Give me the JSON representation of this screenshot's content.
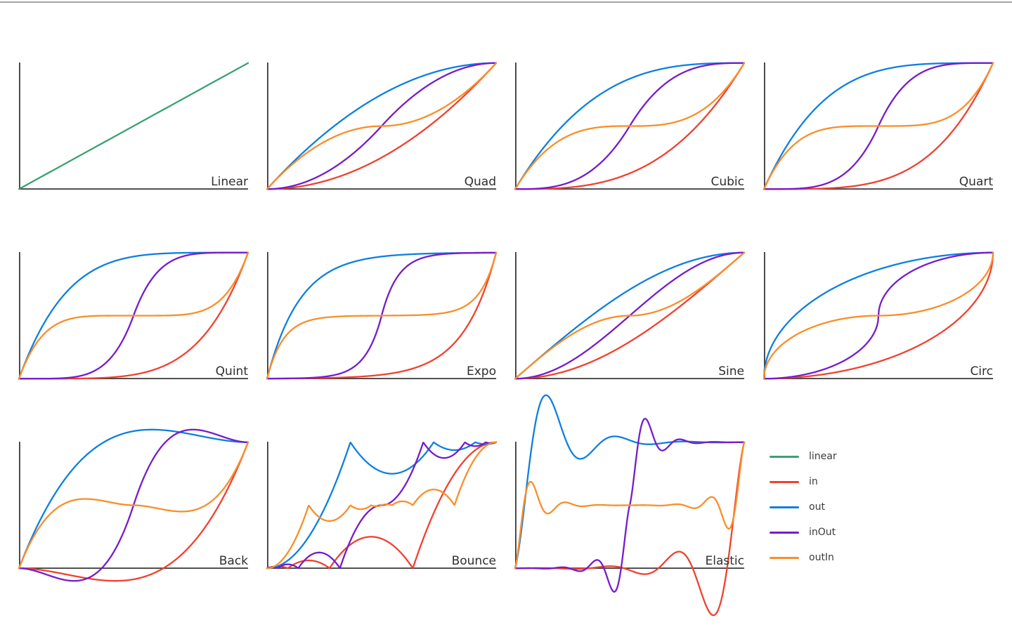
{
  "page": {
    "background": "#ffffff",
    "top_border_color": "#a5a5a5"
  },
  "style": {
    "axis_color": "#383838",
    "label_color": "#2f2f2f",
    "curve_stroke_width": 2.3,
    "series_colors": {
      "linear": "#3AA272",
      "in": "#F2402F",
      "out": "#0E7FE1",
      "inOut": "#761CCC",
      "outIn": "#F98E29"
    }
  },
  "legend": {
    "items": [
      {
        "label": "linear",
        "series": "linear"
      },
      {
        "label": "in",
        "series": "in"
      },
      {
        "label": "out",
        "series": "out"
      },
      {
        "label": "inOut",
        "series": "inOut"
      },
      {
        "label": "outIn",
        "series": "outIn"
      }
    ]
  },
  "chart_data": [
    {
      "type": "line",
      "title": "Linear",
      "easing_family": "linear",
      "x_range": [
        0,
        1
      ],
      "y_range": [
        0,
        1
      ],
      "curves": [
        {
          "series": "linear"
        }
      ]
    },
    {
      "type": "line",
      "title": "Quad",
      "easing_family": "quad",
      "x_range": [
        0,
        1
      ],
      "y_range": [
        0,
        1
      ],
      "curves": [
        {
          "series": "in"
        },
        {
          "series": "out"
        },
        {
          "series": "inOut"
        },
        {
          "series": "outIn"
        }
      ]
    },
    {
      "type": "line",
      "title": "Cubic",
      "easing_family": "cubic",
      "x_range": [
        0,
        1
      ],
      "y_range": [
        0,
        1
      ],
      "curves": [
        {
          "series": "in"
        },
        {
          "series": "out"
        },
        {
          "series": "inOut"
        },
        {
          "series": "outIn"
        }
      ]
    },
    {
      "type": "line",
      "title": "Quart",
      "easing_family": "quart",
      "x_range": [
        0,
        1
      ],
      "y_range": [
        0,
        1
      ],
      "curves": [
        {
          "series": "in"
        },
        {
          "series": "out"
        },
        {
          "series": "inOut"
        },
        {
          "series": "outIn"
        }
      ]
    },
    {
      "type": "line",
      "title": "Quint",
      "easing_family": "quint",
      "x_range": [
        0,
        1
      ],
      "y_range": [
        0,
        1
      ],
      "curves": [
        {
          "series": "in"
        },
        {
          "series": "out"
        },
        {
          "series": "inOut"
        },
        {
          "series": "outIn"
        }
      ]
    },
    {
      "type": "line",
      "title": "Expo",
      "easing_family": "expo",
      "x_range": [
        0,
        1
      ],
      "y_range": [
        0,
        1
      ],
      "curves": [
        {
          "series": "in"
        },
        {
          "series": "out"
        },
        {
          "series": "inOut"
        },
        {
          "series": "outIn"
        }
      ]
    },
    {
      "type": "line",
      "title": "Sine",
      "easing_family": "sine",
      "x_range": [
        0,
        1
      ],
      "y_range": [
        0,
        1
      ],
      "curves": [
        {
          "series": "in"
        },
        {
          "series": "out"
        },
        {
          "series": "inOut"
        },
        {
          "series": "outIn"
        }
      ]
    },
    {
      "type": "line",
      "title": "Circ",
      "easing_family": "circ",
      "x_range": [
        0,
        1
      ],
      "y_range": [
        0,
        1
      ],
      "curves": [
        {
          "series": "in"
        },
        {
          "series": "out"
        },
        {
          "series": "inOut"
        },
        {
          "series": "outIn"
        }
      ]
    },
    {
      "type": "line",
      "title": "Back",
      "easing_family": "back",
      "x_range": [
        0,
        1
      ],
      "y_range": [
        0,
        1
      ],
      "curves": [
        {
          "series": "in"
        },
        {
          "series": "out"
        },
        {
          "series": "inOut"
        },
        {
          "series": "outIn"
        }
      ]
    },
    {
      "type": "line",
      "title": "Bounce",
      "easing_family": "bounce",
      "x_range": [
        0,
        1
      ],
      "y_range": [
        0,
        1
      ],
      "curves": [
        {
          "series": "in"
        },
        {
          "series": "out"
        },
        {
          "series": "inOut"
        },
        {
          "series": "outIn"
        }
      ]
    },
    {
      "type": "line",
      "title": "Elastic",
      "easing_family": "elastic",
      "x_range": [
        0,
        1
      ],
      "y_range": [
        0,
        1
      ],
      "curves": [
        {
          "series": "in"
        },
        {
          "series": "out"
        },
        {
          "series": "inOut"
        },
        {
          "series": "outIn"
        }
      ]
    }
  ]
}
